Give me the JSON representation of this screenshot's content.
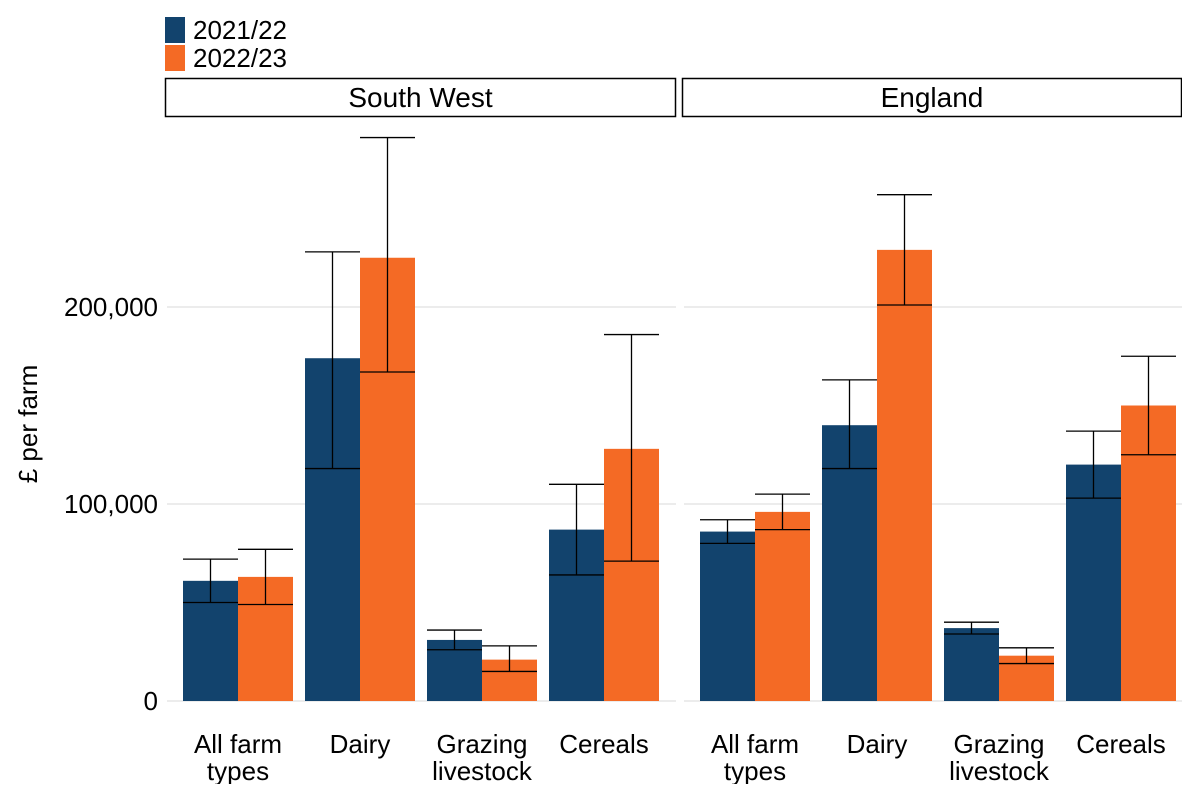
{
  "legend": {
    "items": [
      {
        "label": "2021/22",
        "color": "#12436D"
      },
      {
        "label": "2022/23",
        "color": "#F46A25"
      }
    ]
  },
  "ylabel": "£ per farm",
  "chart_data": {
    "type": "bar",
    "ylabel": "£ per farm",
    "ylim": [
      0,
      290000
    ],
    "yticks": [
      0,
      100000,
      200000
    ],
    "ytick_labels": [
      "0",
      "100,000",
      "200,000"
    ],
    "grid": "horizontal",
    "legend_position": "top-left",
    "categories": [
      {
        "label": [
          "All farm",
          "types"
        ]
      },
      {
        "label": [
          "Dairy"
        ]
      },
      {
        "label": [
          "Grazing",
          "livestock"
        ]
      },
      {
        "label": [
          "Cereals"
        ]
      }
    ],
    "series_names": [
      "2021/22",
      "2022/23"
    ],
    "series_colors": [
      "#12436D",
      "#F46A25"
    ],
    "panels": [
      {
        "title": "South West",
        "series": [
          {
            "name": "2021/22",
            "values": [
              61000,
              174000,
              31000,
              87000
            ],
            "lower": [
              50000,
              118000,
              26000,
              64000
            ],
            "upper": [
              72000,
              228000,
              36000,
              110000
            ]
          },
          {
            "name": "2022/23",
            "values": [
              63000,
              225000,
              21000,
              128000
            ],
            "lower": [
              49000,
              167000,
              15000,
              71000
            ],
            "upper": [
              77000,
              286000,
              28000,
              186000
            ]
          }
        ]
      },
      {
        "title": "England",
        "series": [
          {
            "name": "2021/22",
            "values": [
              86000,
              140000,
              37000,
              120000
            ],
            "lower": [
              80000,
              118000,
              34000,
              103000
            ],
            "upper": [
              92000,
              163000,
              40000,
              137000
            ]
          },
          {
            "name": "2022/23",
            "values": [
              96000,
              229000,
              23000,
              150000
            ],
            "lower": [
              87000,
              201000,
              19000,
              125000
            ],
            "upper": [
              105000,
              257000,
              27000,
              175000
            ]
          }
        ]
      }
    ]
  }
}
